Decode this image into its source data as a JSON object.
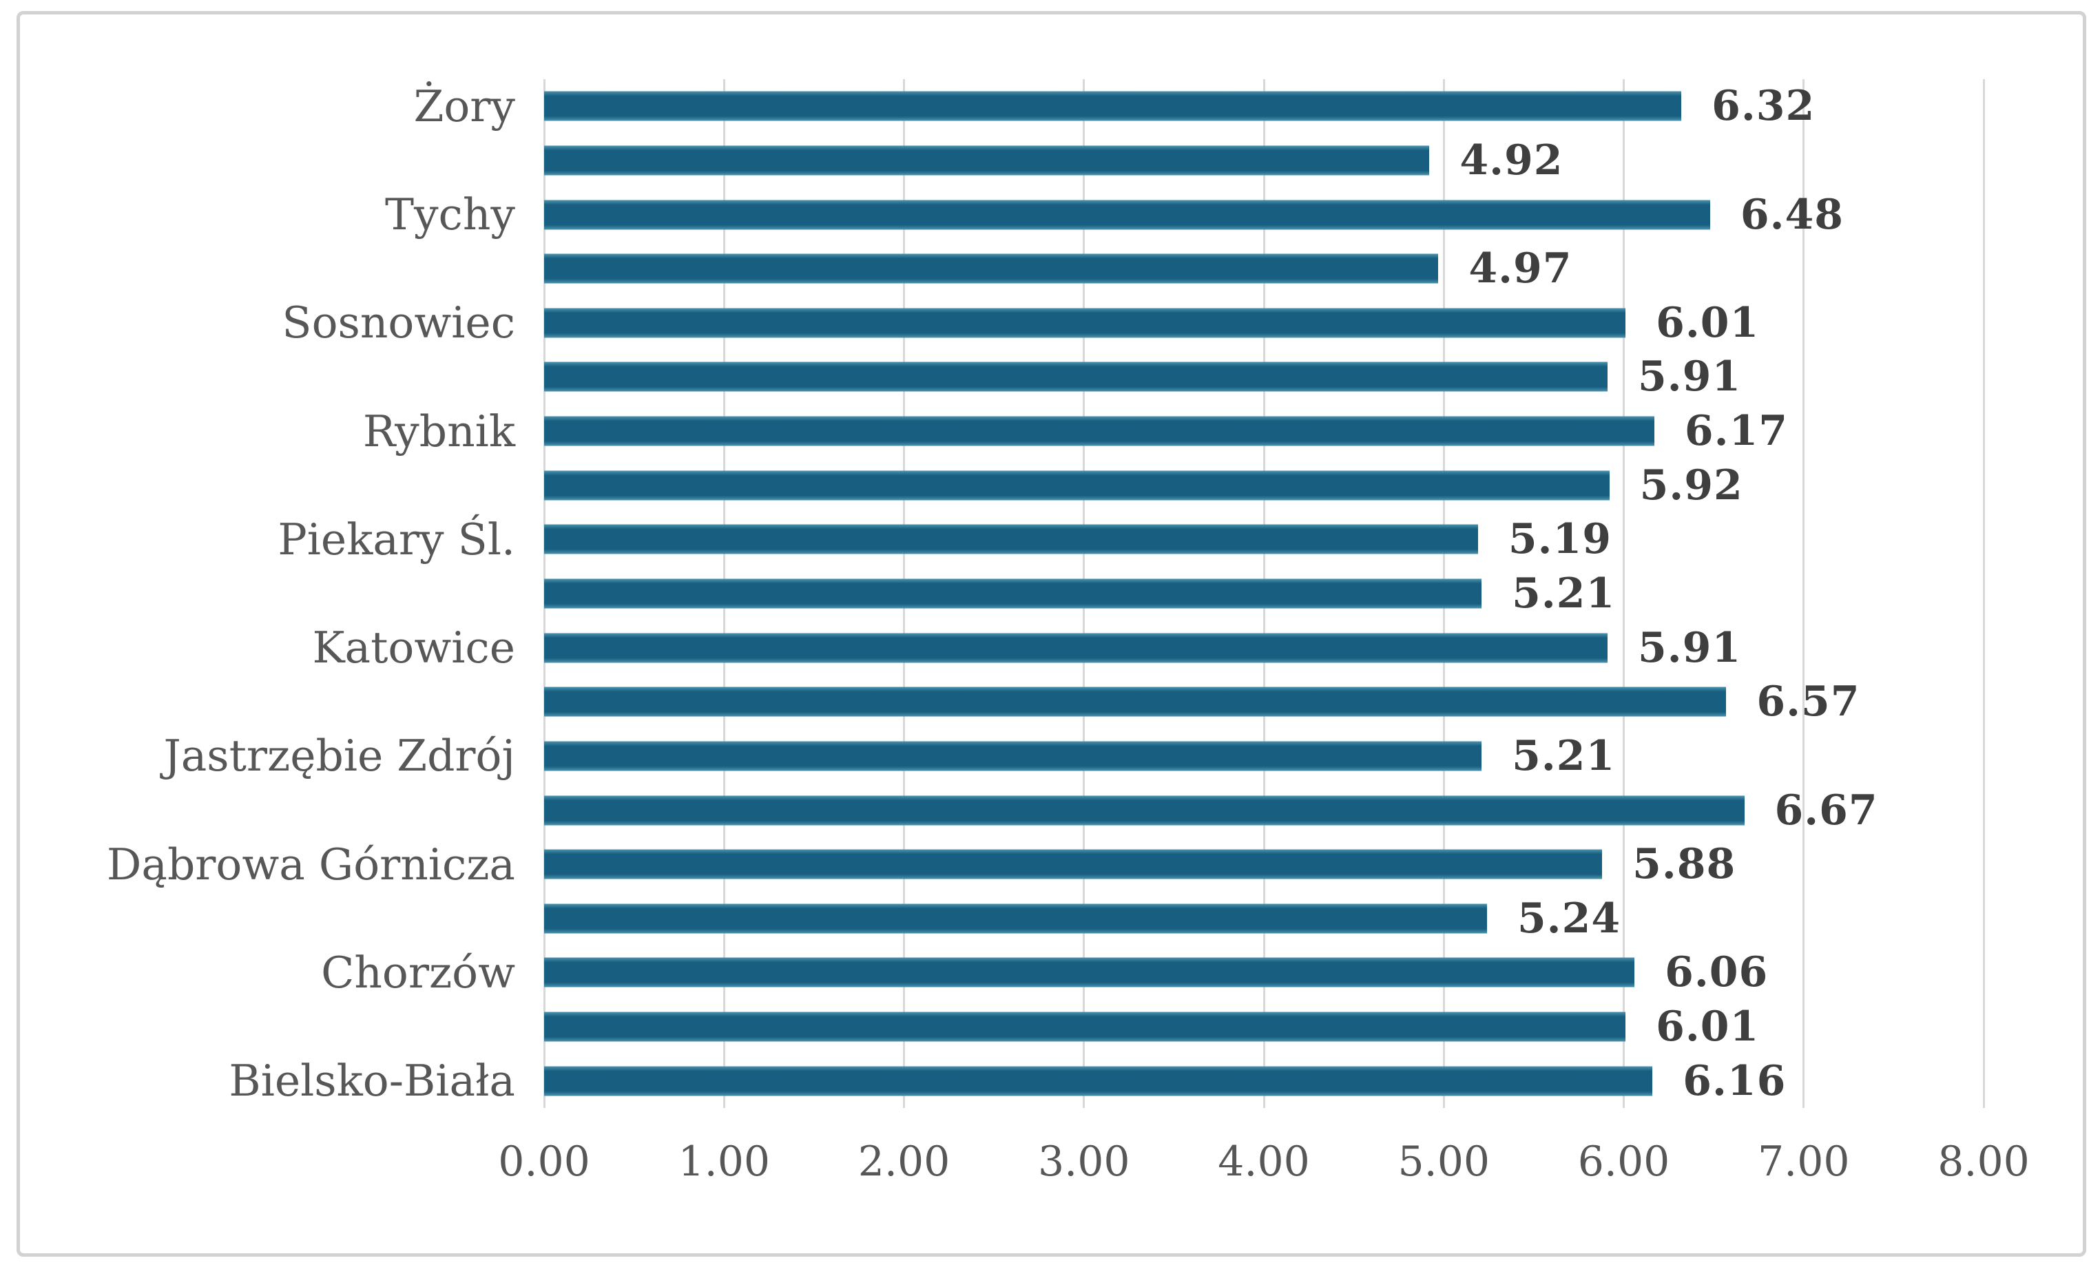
{
  "figure": {
    "background": "#ffffff",
    "border_color": "#d2d2d2"
  },
  "chart_data": {
    "type": "bar",
    "orientation": "horizontal",
    "title": "",
    "xlabel": "",
    "ylabel": "",
    "xlim": [
      0,
      8
    ],
    "grid": true,
    "legend": "none",
    "x_ticks": [
      "0.00",
      "1.00",
      "2.00",
      "3.00",
      "4.00",
      "5.00",
      "6.00",
      "7.00",
      "8.00"
    ],
    "categories": [
      "Żory",
      "Tychy",
      "Sosnowiec",
      "Rybnik",
      "Piekary Śl.",
      "Katowice",
      "Jastrzębie Zdrój",
      "Dąbrowa Górnicza",
      "Chorzów",
      "Bielsko-Biała"
    ],
    "rows": [
      {
        "category": "Żory",
        "value": 6.32,
        "value_label": "6.32"
      },
      {
        "category": "",
        "value": 4.92,
        "value_label": "4.92"
      },
      {
        "category": "Tychy",
        "value": 6.48,
        "value_label": "6.48"
      },
      {
        "category": "",
        "value": 4.97,
        "value_label": "4.97"
      },
      {
        "category": "Sosnowiec",
        "value": 6.01,
        "value_label": "6.01"
      },
      {
        "category": "",
        "value": 5.91,
        "value_label": "5.91"
      },
      {
        "category": "Rybnik",
        "value": 6.17,
        "value_label": "6.17"
      },
      {
        "category": "",
        "value": 5.92,
        "value_label": "5.92"
      },
      {
        "category": "Piekary Śl.",
        "value": 5.19,
        "value_label": "5.19"
      },
      {
        "category": "",
        "value": 5.21,
        "value_label": "5.21"
      },
      {
        "category": "Katowice",
        "value": 5.91,
        "value_label": "5.91"
      },
      {
        "category": "",
        "value": 6.57,
        "value_label": "6.57"
      },
      {
        "category": "Jastrzębie Zdrój",
        "value": 5.21,
        "value_label": "5.21"
      },
      {
        "category": "",
        "value": 6.67,
        "value_label": "6.67"
      },
      {
        "category": "Dąbrowa Górnicza",
        "value": 5.88,
        "value_label": "5.88"
      },
      {
        "category": "",
        "value": 5.24,
        "value_label": "5.24"
      },
      {
        "category": "Chorzów",
        "value": 6.06,
        "value_label": "6.06"
      },
      {
        "category": "",
        "value": 6.01,
        "value_label": "6.01"
      },
      {
        "category": "Bielsko-Biała",
        "value": 6.16,
        "value_label": "6.16"
      }
    ],
    "bar_color": "#175E80",
    "bar_edge_color": "#4C93AE",
    "gridline_color": "#D8D8D8",
    "category_label_color": "#575757",
    "value_label_color": "#3F3F3F",
    "tick_label_color": "#575757"
  }
}
